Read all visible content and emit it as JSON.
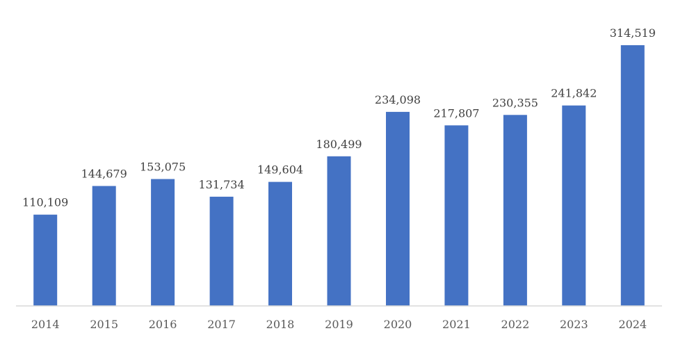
{
  "chart_data": {
    "type": "bar",
    "categories": [
      "2014",
      "2015",
      "2016",
      "2017",
      "2018",
      "2019",
      "2020",
      "2021",
      "2022",
      "2023",
      "2024"
    ],
    "values": [
      110109,
      144679,
      153075,
      131734,
      149604,
      180499,
      234098,
      217807,
      230355,
      241842,
      314519
    ],
    "value_labels": [
      "110,109",
      "144,679",
      "153,075",
      "131,734",
      "149,604",
      "180,499",
      "234,098",
      "217,807",
      "230,355",
      "241,842",
      "314,519"
    ],
    "title": "",
    "xlabel": "",
    "ylabel": "",
    "ylim": [
      0,
      314519
    ],
    "grid": false,
    "legend": "none",
    "bar_color": "#4472c4"
  }
}
